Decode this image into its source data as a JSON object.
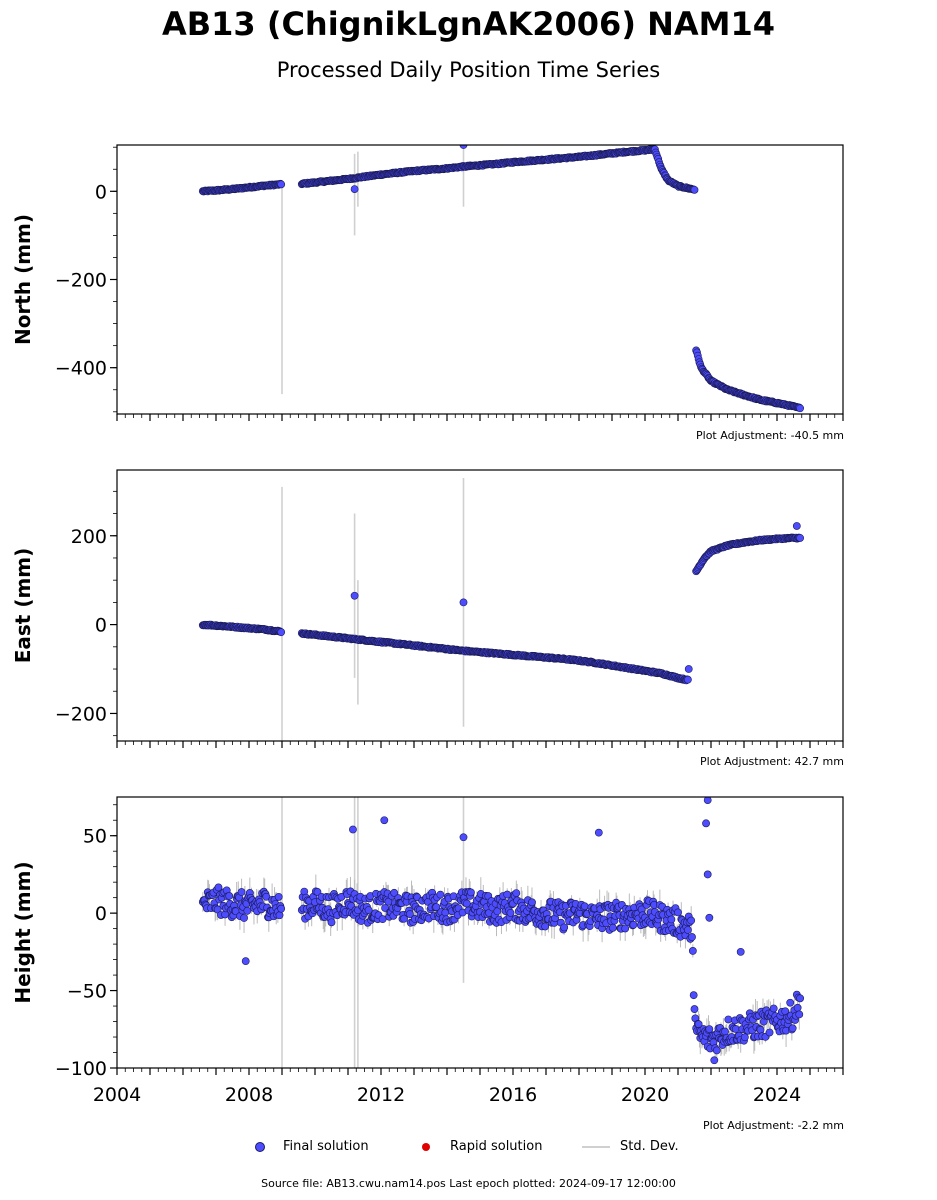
{
  "title": "AB13 (ChignikLgnAK2006) NAM14",
  "subtitle": "Processed Daily Position Time Series",
  "legend": {
    "final_label": "Final solution",
    "rapid_label": "Rapid solution",
    "std_label": "Std. Dev.",
    "final_color": "#4d4dff",
    "rapid_color": "#e00000",
    "std_color": "#d0d0d0"
  },
  "source_line": "Source file: AB13.cwu.nam14.pos  Last epoch plotted: 2024-09-17 12:00:00",
  "chart_data": [
    {
      "type": "scatter",
      "ylabel": "North (mm)",
      "adjustment": "Plot Adjustment: -40.5 mm",
      "xlim": [
        2004,
        2026
      ],
      "ylim": [
        -505,
        105
      ],
      "yticks": [
        0,
        -200,
        -400
      ],
      "ytick_labels": [
        "0",
        "−200",
        "−400"
      ],
      "series": [
        {
          "values": [
            [
              2006.6,
              0
            ],
            [
              2007.0,
              2
            ],
            [
              2007.5,
              5
            ],
            [
              2008.0,
              9
            ],
            [
              2008.5,
              13
            ],
            [
              2009.0,
              16
            ],
            [
              2009.6,
              17
            ],
            [
              2010.0,
              20
            ],
            [
              2010.5,
              24
            ],
            [
              2011.0,
              28
            ],
            [
              2011.5,
              33
            ],
            [
              2012.0,
              38
            ],
            [
              2012.5,
              42
            ],
            [
              2013.0,
              46
            ],
            [
              2013.5,
              49
            ],
            [
              2014.0,
              52
            ],
            [
              2014.5,
              56
            ],
            [
              2015.0,
              59
            ],
            [
              2015.5,
              62
            ],
            [
              2016.0,
              66
            ],
            [
              2016.5,
              69
            ],
            [
              2017.0,
              72
            ],
            [
              2017.5,
              75
            ],
            [
              2018.0,
              78
            ],
            [
              2018.5,
              82
            ],
            [
              2019.0,
              86
            ],
            [
              2019.5,
              90
            ],
            [
              2020.0,
              93
            ],
            [
              2020.3,
              95
            ],
            [
              2020.5,
              50
            ],
            [
              2020.7,
              25
            ],
            [
              2021.0,
              12
            ],
            [
              2021.3,
              7
            ],
            [
              2021.5,
              4
            ],
            [
              2021.55,
              -360
            ],
            [
              2021.7,
              -400
            ],
            [
              2022.0,
              -430
            ],
            [
              2022.5,
              -450
            ],
            [
              2023.0,
              -462
            ],
            [
              2023.5,
              -473
            ],
            [
              2024.0,
              -480
            ],
            [
              2024.5,
              -488
            ],
            [
              2024.7,
              -492
            ]
          ],
          "outliers": [
            [
              2011.2,
              5
            ],
            [
              2014.5,
              105
            ]
          ]
        }
      ],
      "std_spikes": [
        [
          2009.0,
          -460,
          25
        ],
        [
          2011.2,
          -100,
          85
        ],
        [
          2011.3,
          -35,
          90
        ],
        [
          2014.5,
          -35,
          100
        ]
      ]
    },
    {
      "type": "scatter",
      "ylabel": "East (mm)",
      "adjustment": "Plot Adjustment: 42.7 mm",
      "xlim": [
        2004,
        2026
      ],
      "ylim": [
        -262,
        348
      ],
      "yticks": [
        200,
        0,
        -200
      ],
      "ytick_labels": [
        "200",
        "0",
        "−200"
      ],
      "series": [
        {
          "values": [
            [
              2006.6,
              0
            ],
            [
              2007.0,
              -2
            ],
            [
              2007.5,
              -5
            ],
            [
              2008.0,
              -8
            ],
            [
              2008.5,
              -11
            ],
            [
              2009.0,
              -16
            ],
            [
              2009.6,
              -20
            ],
            [
              2010.0,
              -23
            ],
            [
              2010.5,
              -27
            ],
            [
              2011.0,
              -31
            ],
            [
              2011.5,
              -35
            ],
            [
              2012.0,
              -39
            ],
            [
              2012.5,
              -43
            ],
            [
              2013.0,
              -47
            ],
            [
              2013.5,
              -51
            ],
            [
              2014.0,
              -55
            ],
            [
              2014.5,
              -59
            ],
            [
              2015.0,
              -62
            ],
            [
              2015.5,
              -65
            ],
            [
              2016.0,
              -68
            ],
            [
              2016.5,
              -71
            ],
            [
              2017.0,
              -74
            ],
            [
              2017.5,
              -77
            ],
            [
              2018.0,
              -81
            ],
            [
              2018.5,
              -86
            ],
            [
              2019.0,
              -92
            ],
            [
              2019.5,
              -98
            ],
            [
              2020.0,
              -104
            ],
            [
              2020.5,
              -110
            ],
            [
              2021.0,
              -120
            ],
            [
              2021.3,
              -125
            ],
            [
              2021.55,
              120
            ],
            [
              2021.8,
              150
            ],
            [
              2022.0,
              165
            ],
            [
              2022.5,
              178
            ],
            [
              2023.0,
              185
            ],
            [
              2023.5,
              190
            ],
            [
              2024.0,
              193
            ],
            [
              2024.5,
              195
            ],
            [
              2024.7,
              195
            ]
          ],
          "outliers": [
            [
              2011.2,
              65
            ],
            [
              2014.5,
              50
            ],
            [
              2024.6,
              222
            ]
          ]
        }
      ],
      "std_spikes": [
        [
          2009.0,
          -262,
          310
        ],
        [
          2011.2,
          -120,
          250
        ],
        [
          2011.3,
          -180,
          100
        ],
        [
          2014.5,
          -230,
          330
        ]
      ]
    },
    {
      "type": "scatter",
      "ylabel": "Height (mm)",
      "adjustment": "Plot Adjustment: -2.2 mm",
      "xlim": [
        2004,
        2026
      ],
      "ylim": [
        -100,
        75
      ],
      "yticks": [
        50,
        0,
        -50,
        -100
      ],
      "ytick_labels": [
        "50",
        "0",
        "−50",
        "−100"
      ],
      "xticks": [
        2004,
        2008,
        2012,
        2016,
        2020,
        2024
      ],
      "xtick_labels": [
        "2004",
        "2008",
        "2012",
        "2016",
        "2020",
        "2024"
      ],
      "series": [
        {
          "values": [
            [
              2006.6,
              5
            ],
            [
              2007.0,
              8
            ],
            [
              2007.5,
              6
            ],
            [
              2008.0,
              4
            ],
            [
              2008.5,
              7
            ],
            [
              2009.0,
              2
            ],
            [
              2009.6,
              5
            ],
            [
              2010.0,
              6
            ],
            [
              2010.5,
              3
            ],
            [
              2011.0,
              8
            ],
            [
              2011.5,
              2
            ],
            [
              2012.0,
              5
            ],
            [
              2012.5,
              4
            ],
            [
              2013.0,
              2
            ],
            [
              2013.5,
              5
            ],
            [
              2014.0,
              3
            ],
            [
              2014.5,
              6
            ],
            [
              2015.0,
              4
            ],
            [
              2015.5,
              2
            ],
            [
              2016.0,
              5
            ],
            [
              2016.5,
              1
            ],
            [
              2017.0,
              0
            ],
            [
              2017.5,
              -2
            ],
            [
              2018.0,
              0
            ],
            [
              2018.5,
              -3
            ],
            [
              2019.0,
              -2
            ],
            [
              2019.5,
              -1
            ],
            [
              2020.0,
              0
            ],
            [
              2020.5,
              -3
            ],
            [
              2021.0,
              -6
            ],
            [
              2021.4,
              -10
            ],
            [
              2021.55,
              -78
            ],
            [
              2022.0,
              -82
            ],
            [
              2022.5,
              -76
            ],
            [
              2023.0,
              -74
            ],
            [
              2023.5,
              -72
            ],
            [
              2024.0,
              -70
            ],
            [
              2024.5,
              -66
            ],
            [
              2024.7,
              -55
            ]
          ],
          "outliers": [
            [
              2007.9,
              -31
            ],
            [
              2011.15,
              54
            ],
            [
              2012.1,
              60
            ],
            [
              2014.5,
              49
            ],
            [
              2018.6,
              52
            ],
            [
              2021.9,
              73
            ],
            [
              2021.85,
              58
            ],
            [
              2021.9,
              25
            ],
            [
              2021.95,
              -3
            ],
            [
              2022.9,
              -25
            ],
            [
              2022.1,
              -95
            ]
          ]
        }
      ],
      "std_spikes": [
        [
          2009.0,
          -100,
          75
        ],
        [
          2011.2,
          -100,
          75
        ],
        [
          2011.3,
          -100,
          75
        ],
        [
          2014.5,
          -45,
          75
        ]
      ]
    }
  ]
}
